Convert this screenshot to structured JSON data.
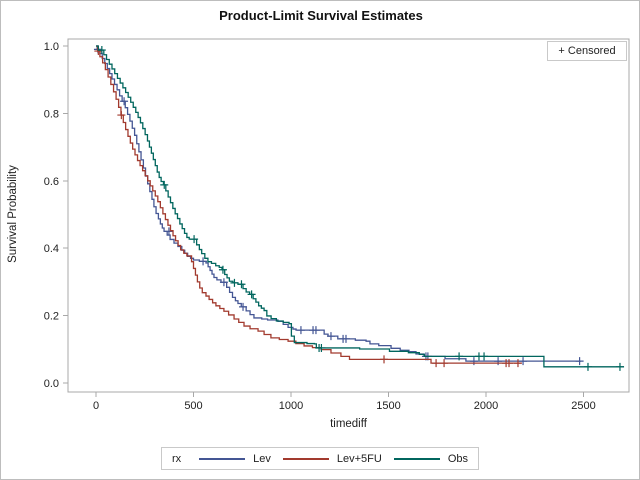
{
  "figure": {
    "title": "Product-Limit Survival Estimates",
    "censored_note": "+ Censored",
    "legend_title": "rx"
  },
  "chart_data": {
    "type": "line",
    "subtype": "kaplan-meier-step-survival",
    "title": "Product-Limit Survival Estimates",
    "xlabel": "timediff",
    "ylabel": "Survival Probability",
    "xlim": [
      0,
      2733
    ],
    "ylim": [
      0.0,
      1.0
    ],
    "grid": false,
    "legend_position": "bottom",
    "censor_marker": "plus",
    "x_axis": {
      "tick_values": [
        0,
        500,
        1000,
        1500,
        2000,
        2500
      ],
      "tick_labels": [
        "0",
        "500",
        "1000",
        "1500",
        "2000",
        "2500"
      ]
    },
    "y_axis": {
      "tick_values": [
        0.0,
        0.2,
        0.4,
        0.6,
        0.8,
        1.0
      ],
      "tick_labels": [
        "0.0",
        "0.2",
        "0.4",
        "0.6",
        "0.8",
        "1.0"
      ]
    },
    "series": [
      {
        "name": "Lev",
        "color": "#445694",
        "end": 2487,
        "steps": [
          [
            0,
            1.0
          ],
          [
            6,
            0.99
          ],
          [
            20,
            0.978
          ],
          [
            32,
            0.963
          ],
          [
            45,
            0.948
          ],
          [
            58,
            0.933
          ],
          [
            70,
            0.918
          ],
          [
            82,
            0.902
          ],
          [
            95,
            0.886
          ],
          [
            108,
            0.87
          ],
          [
            121,
            0.852
          ],
          [
            134,
            0.836
          ],
          [
            150,
            0.817
          ],
          [
            162,
            0.797
          ],
          [
            174,
            0.777
          ],
          [
            186,
            0.756
          ],
          [
            198,
            0.735
          ],
          [
            209,
            0.71
          ],
          [
            220,
            0.686
          ],
          [
            231,
            0.662
          ],
          [
            243,
            0.638
          ],
          [
            254,
            0.614
          ],
          [
            265,
            0.591
          ],
          [
            276,
            0.568
          ],
          [
            287,
            0.545
          ],
          [
            297,
            0.523
          ],
          [
            308,
            0.503
          ],
          [
            320,
            0.487
          ],
          [
            330,
            0.472
          ],
          [
            340,
            0.46
          ],
          [
            349,
            0.45
          ],
          [
            365,
            0.439
          ],
          [
            380,
            0.426
          ],
          [
            400,
            0.415
          ],
          [
            420,
            0.405
          ],
          [
            440,
            0.394
          ],
          [
            455,
            0.385
          ],
          [
            470,
            0.376
          ],
          [
            485,
            0.37
          ],
          [
            500,
            0.365
          ],
          [
            530,
            0.361
          ],
          [
            564,
            0.356
          ],
          [
            575,
            0.345
          ],
          [
            585,
            0.334
          ],
          [
            595,
            0.323
          ],
          [
            605,
            0.313
          ],
          [
            620,
            0.306
          ],
          [
            641,
            0.299
          ],
          [
            670,
            0.284
          ],
          [
            685,
            0.269
          ],
          [
            700,
            0.254
          ],
          [
            715,
            0.244
          ],
          [
            728,
            0.236
          ],
          [
            745,
            0.226
          ],
          [
            770,
            0.214
          ],
          [
            790,
            0.203
          ],
          [
            810,
            0.193
          ],
          [
            850,
            0.19
          ],
          [
            880,
            0.187
          ],
          [
            933,
            0.183
          ],
          [
            960,
            0.174
          ],
          [
            985,
            0.165
          ],
          [
            1010,
            0.16
          ],
          [
            1026,
            0.157
          ],
          [
            1170,
            0.145
          ],
          [
            1190,
            0.139
          ],
          [
            1240,
            0.131
          ],
          [
            1330,
            0.127
          ],
          [
            1385,
            0.124
          ],
          [
            1405,
            0.116
          ],
          [
            1450,
            0.111
          ],
          [
            1513,
            0.103
          ],
          [
            1560,
            0.097
          ],
          [
            1605,
            0.093
          ],
          [
            1641,
            0.086
          ],
          [
            1682,
            0.079
          ],
          [
            1790,
            0.072
          ],
          [
            1897,
            0.065
          ]
        ],
        "censors": [
          [
            10,
            0.99
          ],
          [
            144,
            0.836
          ],
          [
            374,
            0.45
          ],
          [
            549,
            0.361
          ],
          [
            656,
            0.299
          ],
          [
            754,
            0.226
          ],
          [
            1051,
            0.157
          ],
          [
            1113,
            0.157
          ],
          [
            1128,
            0.157
          ],
          [
            1205,
            0.139
          ],
          [
            1267,
            0.131
          ],
          [
            1282,
            0.131
          ],
          [
            1692,
            0.079
          ],
          [
            1702,
            0.079
          ],
          [
            1938,
            0.065
          ],
          [
            2062,
            0.065
          ],
          [
            2190,
            0.065
          ],
          [
            2480,
            0.065
          ]
        ]
      },
      {
        "name": "Lev+5FU",
        "color": "#A23A2E",
        "end": 2180,
        "steps": [
          [
            0,
            1.0
          ],
          [
            8,
            0.985
          ],
          [
            20,
            0.968
          ],
          [
            34,
            0.95
          ],
          [
            48,
            0.93
          ],
          [
            62,
            0.908
          ],
          [
            76,
            0.886
          ],
          [
            90,
            0.864
          ],
          [
            103,
            0.842
          ],
          [
            116,
            0.818
          ],
          [
            128,
            0.795
          ],
          [
            140,
            0.773
          ],
          [
            152,
            0.752
          ],
          [
            164,
            0.732
          ],
          [
            176,
            0.712
          ],
          [
            188,
            0.694
          ],
          [
            200,
            0.677
          ],
          [
            213,
            0.66
          ],
          [
            226,
            0.645
          ],
          [
            239,
            0.63
          ],
          [
            252,
            0.615
          ],
          [
            265,
            0.6
          ],
          [
            278,
            0.585
          ],
          [
            291,
            0.57
          ],
          [
            304,
            0.555
          ],
          [
            317,
            0.538
          ],
          [
            330,
            0.52
          ],
          [
            343,
            0.502
          ],
          [
            356,
            0.485
          ],
          [
            369,
            0.468
          ],
          [
            382,
            0.452
          ],
          [
            395,
            0.437
          ],
          [
            408,
            0.422
          ],
          [
            421,
            0.408
          ],
          [
            434,
            0.395
          ],
          [
            450,
            0.385
          ],
          [
            466,
            0.377
          ],
          [
            490,
            0.36
          ],
          [
            500,
            0.34
          ],
          [
            510,
            0.32
          ],
          [
            520,
            0.3
          ],
          [
            532,
            0.282
          ],
          [
            545,
            0.268
          ],
          [
            564,
            0.258
          ],
          [
            580,
            0.248
          ],
          [
            598,
            0.238
          ],
          [
            615,
            0.229
          ],
          [
            635,
            0.221
          ],
          [
            656,
            0.213
          ],
          [
            680,
            0.202
          ],
          [
            708,
            0.19
          ],
          [
            732,
            0.18
          ],
          [
            759,
            0.169
          ],
          [
            790,
            0.161
          ],
          [
            831,
            0.154
          ],
          [
            862,
            0.144
          ],
          [
            897,
            0.134
          ],
          [
            940,
            0.129
          ],
          [
            985,
            0.124
          ],
          [
            1025,
            0.117
          ],
          [
            1067,
            0.11
          ],
          [
            1110,
            0.105
          ],
          [
            1154,
            0.099
          ],
          [
            1205,
            0.089
          ],
          [
            1256,
            0.079
          ],
          [
            1300,
            0.07
          ],
          [
            1718,
            0.059
          ]
        ],
        "censors": [
          [
            12,
            0.985
          ],
          [
            130,
            0.795
          ],
          [
            1477,
            0.07
          ],
          [
            1744,
            0.059
          ],
          [
            1785,
            0.059
          ],
          [
            2103,
            0.059
          ],
          [
            2118,
            0.059
          ],
          [
            2164,
            0.059
          ]
        ]
      },
      {
        "name": "Obs",
        "color": "#01665E",
        "end": 2708,
        "steps": [
          [
            0,
            1.0
          ],
          [
            12,
            0.988
          ],
          [
            40,
            0.974
          ],
          [
            54,
            0.96
          ],
          [
            68,
            0.946
          ],
          [
            82,
            0.932
          ],
          [
            96,
            0.918
          ],
          [
            110,
            0.904
          ],
          [
            124,
            0.89
          ],
          [
            138,
            0.876
          ],
          [
            152,
            0.862
          ],
          [
            165,
            0.848
          ],
          [
            178,
            0.833
          ],
          [
            191,
            0.818
          ],
          [
            204,
            0.803
          ],
          [
            216,
            0.788
          ],
          [
            228,
            0.772
          ],
          [
            240,
            0.755
          ],
          [
            252,
            0.737
          ],
          [
            264,
            0.718
          ],
          [
            274,
            0.7
          ],
          [
            284,
            0.682
          ],
          [
            294,
            0.663
          ],
          [
            304,
            0.645
          ],
          [
            314,
            0.626
          ],
          [
            324,
            0.61
          ],
          [
            334,
            0.598
          ],
          [
            346,
            0.588
          ],
          [
            358,
            0.57
          ],
          [
            370,
            0.552
          ],
          [
            382,
            0.535
          ],
          [
            394,
            0.518
          ],
          [
            406,
            0.502
          ],
          [
            418,
            0.488
          ],
          [
            430,
            0.472
          ],
          [
            442,
            0.458
          ],
          [
            454,
            0.444
          ],
          [
            466,
            0.432
          ],
          [
            478,
            0.427
          ],
          [
            516,
            0.41
          ],
          [
            530,
            0.396
          ],
          [
            542,
            0.384
          ],
          [
            558,
            0.37
          ],
          [
            574,
            0.36
          ],
          [
            592,
            0.355
          ],
          [
            614,
            0.348
          ],
          [
            632,
            0.343
          ],
          [
            646,
            0.336
          ],
          [
            660,
            0.322
          ],
          [
            672,
            0.312
          ],
          [
            684,
            0.302
          ],
          [
            702,
            0.297
          ],
          [
            728,
            0.293
          ],
          [
            754,
            0.28
          ],
          [
            770,
            0.27
          ],
          [
            788,
            0.263
          ],
          [
            806,
            0.25
          ],
          [
            820,
            0.24
          ],
          [
            834,
            0.229
          ],
          [
            848,
            0.222
          ],
          [
            862,
            0.215
          ],
          [
            876,
            0.199
          ],
          [
            898,
            0.191
          ],
          [
            925,
            0.184
          ],
          [
            960,
            0.18
          ],
          [
            990,
            0.176
          ],
          [
            1002,
            0.139
          ],
          [
            1017,
            0.12
          ],
          [
            1082,
            0.117
          ],
          [
            1120,
            0.116
          ],
          [
            1130,
            0.104
          ],
          [
            1352,
            0.101
          ],
          [
            1505,
            0.094
          ],
          [
            1602,
            0.09
          ],
          [
            1658,
            0.085
          ],
          [
            1684,
            0.079
          ],
          [
            2297,
            0.048
          ]
        ],
        "censors": [
          [
            30,
            0.988
          ],
          [
            350,
            0.588
          ],
          [
            503,
            0.427
          ],
          [
            651,
            0.336
          ],
          [
            710,
            0.297
          ],
          [
            746,
            0.293
          ],
          [
            798,
            0.263
          ],
          [
            1144,
            0.104
          ],
          [
            1156,
            0.104
          ],
          [
            1862,
            0.079
          ],
          [
            1964,
            0.079
          ],
          [
            1990,
            0.079
          ],
          [
            2523,
            0.048
          ],
          [
            2687,
            0.048
          ]
        ]
      }
    ]
  }
}
